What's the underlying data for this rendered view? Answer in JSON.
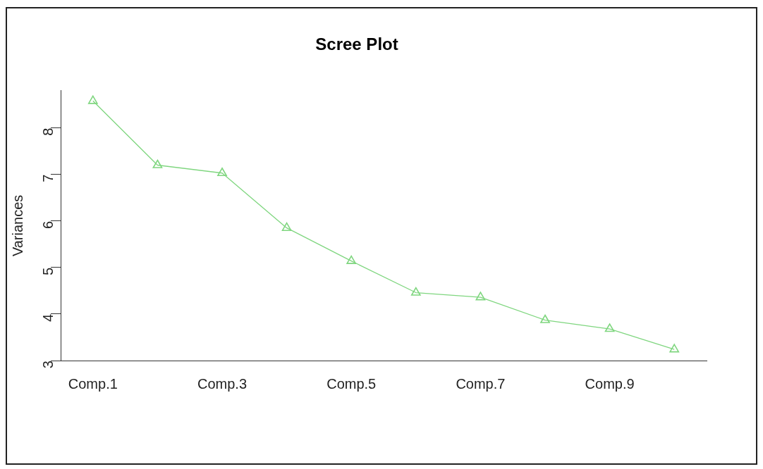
{
  "chart_data": {
    "type": "line",
    "title": "Scree Plot",
    "ylabel": "Variances",
    "categories": [
      "Comp.1",
      null,
      "Comp.3",
      null,
      "Comp.5",
      null,
      "Comp.7",
      null,
      "Comp.9",
      null
    ],
    "series": [
      {
        "color": "#7fd67f",
        "values": [
          8.58,
          7.2,
          7.03,
          5.85,
          5.14,
          4.46,
          4.36,
          3.87,
          3.68,
          3.24
        ]
      }
    ],
    "ylim": [
      3,
      8.8
    ],
    "yticks": [
      3,
      4,
      5,
      6,
      7,
      8
    ],
    "grid": false,
    "legend": false,
    "marker": "triangle",
    "line_style": "solid"
  }
}
